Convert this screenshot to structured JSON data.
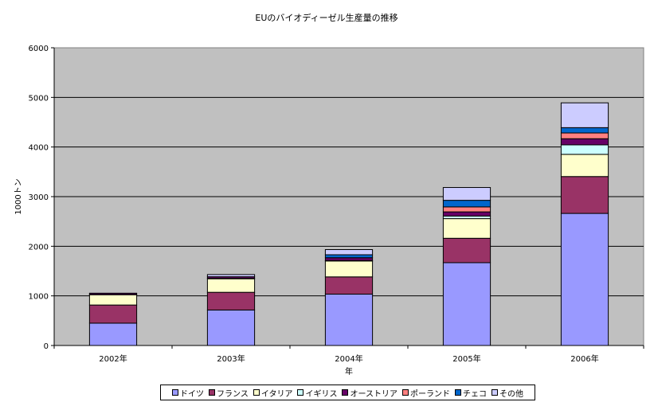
{
  "chart_data": {
    "type": "bar",
    "stacked": true,
    "title": "EUのバイオディーゼル生産量の推移",
    "xlabel": "年",
    "ylabel": "1000トン",
    "ylim": [
      0,
      6000
    ],
    "yticks": [
      0,
      1000,
      2000,
      3000,
      4000,
      5000,
      6000
    ],
    "grid": true,
    "legend_position": "bottom",
    "plot_background": "#C0C0C0",
    "categories": [
      "2002年",
      "2003年",
      "2004年",
      "2005年",
      "2006年"
    ],
    "series": [
      {
        "name": "ドイツ",
        "color": "#9999FF",
        "values": [
          450,
          715,
          1035,
          1669,
          2662
        ]
      },
      {
        "name": "フランス",
        "color": "#993366",
        "values": [
          366,
          357,
          348,
          492,
          743
        ]
      },
      {
        "name": "イタリア",
        "color": "#FFFFCC",
        "values": [
          210,
          273,
          320,
          396,
          447
        ]
      },
      {
        "name": "イギリス",
        "color": "#CCFFFF",
        "values": [
          3,
          9,
          9,
          51,
          192
        ]
      },
      {
        "name": "オーストリア",
        "color": "#660066",
        "values": [
          25,
          32,
          57,
          85,
          123
        ]
      },
      {
        "name": "ポーランド",
        "color": "#FF8080",
        "values": [
          0,
          0,
          0,
          100,
          116
        ]
      },
      {
        "name": "チェコ",
        "color": "#0066CC",
        "values": [
          0,
          0,
          60,
          133,
          107
        ]
      },
      {
        "name": "その他",
        "color": "#CCCCFF",
        "values": [
          0,
          44,
          104,
          258,
          500
        ]
      }
    ]
  }
}
